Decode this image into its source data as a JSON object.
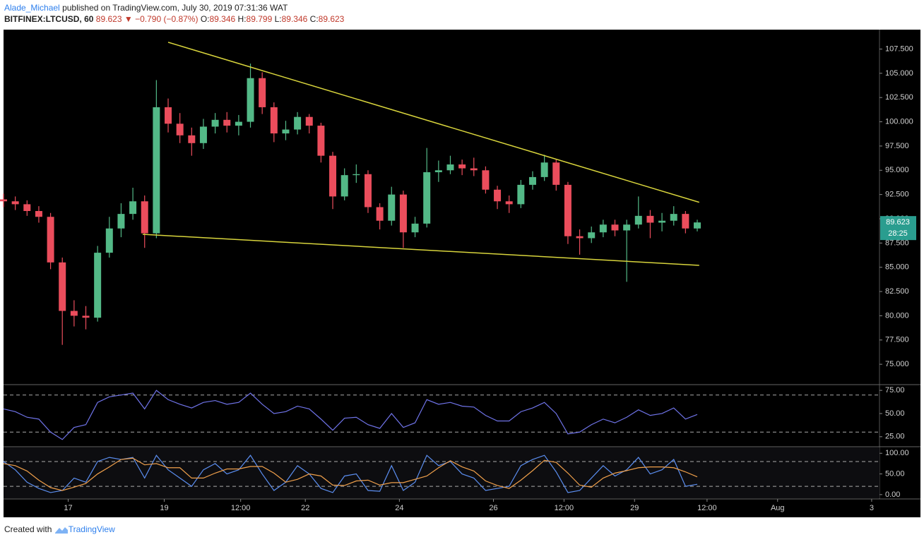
{
  "header": {
    "author": "Alade_Michael",
    "published": "published on TradingView.com, July 30, 2019 07:31:36 WAT",
    "symbol": "BITFINEX:LTCUSD, 60",
    "last": "89.623",
    "arrow": "▼",
    "change": "−0.790 (−0.87%)",
    "o_label": "O:",
    "o": "89.346",
    "h_label": "H:",
    "h": "89.799",
    "l_label": "L:",
    "l": "89.346",
    "c_label": "C:",
    "c": "89.623"
  },
  "footer": {
    "text": "Created with",
    "brand": "TradingView"
  },
  "chart_data": [
    {
      "type": "candlestick",
      "up_color": "#53b987",
      "down_color": "#eb4d5c",
      "x": [
        0,
        6,
        12,
        18,
        24,
        30,
        36,
        42,
        48,
        54,
        60,
        66,
        72,
        78,
        84,
        90,
        96,
        102,
        108,
        114,
        120,
        126,
        132,
        138,
        144,
        150,
        156,
        162,
        168,
        174,
        180,
        186,
        192,
        198,
        204,
        210,
        216,
        222,
        228,
        234,
        240,
        246,
        252,
        258,
        264,
        270,
        276,
        282,
        288,
        294,
        300,
        306,
        312,
        318,
        324,
        330,
        336,
        342,
        348,
        354
      ],
      "open": [
        92.0,
        91.8,
        91.5,
        90.8,
        90.2,
        85.5,
        80.5,
        80.0,
        79.8,
        86.5,
        89.0,
        90.5,
        91.8,
        88.5,
        101.5,
        99.8,
        98.6,
        97.8,
        99.5,
        100.2,
        99.6,
        100.0,
        104.5,
        101.5,
        98.8,
        99.2,
        100.5,
        99.6,
        96.5,
        92.3,
        94.5,
        94.6,
        91.2,
        89.8,
        92.5,
        88.6,
        89.5,
        94.8,
        95.0,
        95.6,
        95.2,
        95.0,
        93.0,
        91.8,
        91.5,
        93.5,
        94.3,
        95.8,
        93.5,
        88.2,
        88.0,
        88.6,
        89.4,
        88.8,
        89.4,
        90.3,
        89.6,
        89.8,
        90.5,
        89.0
      ],
      "high": [
        92.6,
        92.3,
        91.9,
        91.3,
        90.6,
        86.0,
        81.6,
        81.0,
        87.2,
        90.2,
        91.6,
        93.2,
        92.4,
        104.3,
        102.4,
        100.9,
        99.4,
        100.3,
        100.9,
        101.0,
        100.7,
        106.0,
        105.1,
        102.0,
        100.1,
        101.0,
        100.8,
        99.9,
        96.9,
        95.2,
        95.6,
        95.0,
        91.6,
        93.3,
        92.9,
        90.2,
        97.3,
        96.0,
        96.5,
        96.1,
        96.3,
        95.4,
        93.4,
        92.4,
        94.0,
        94.9,
        96.6,
        96.1,
        93.8,
        88.9,
        89.2,
        89.9,
        89.9,
        89.9,
        92.3,
        90.9,
        90.6,
        91.3,
        90.8,
        89.9
      ],
      "low": [
        91.2,
        90.9,
        90.3,
        89.6,
        84.8,
        77.0,
        78.9,
        78.6,
        79.4,
        86.0,
        88.1,
        89.9,
        87.0,
        88.0,
        98.9,
        97.8,
        96.5,
        97.2,
        98.8,
        98.9,
        98.6,
        99.4,
        100.8,
        97.9,
        98.1,
        98.7,
        98.8,
        95.8,
        91.0,
        91.9,
        93.7,
        90.6,
        88.9,
        89.3,
        87.0,
        88.1,
        89.1,
        93.8,
        94.6,
        94.5,
        94.4,
        92.6,
        91.0,
        90.6,
        91.1,
        93.0,
        93.9,
        92.9,
        87.4,
        86.3,
        87.5,
        88.1,
        88.2,
        83.5,
        89.0,
        88.0,
        88.7,
        89.3,
        88.5,
        88.7
      ],
      "close": [
        91.8,
        91.5,
        90.8,
        90.2,
        85.5,
        80.5,
        80.0,
        79.8,
        86.5,
        89.0,
        90.5,
        91.8,
        88.5,
        101.5,
        99.8,
        98.6,
        97.8,
        99.5,
        100.2,
        99.6,
        100.0,
        104.5,
        101.5,
        98.8,
        99.2,
        100.5,
        99.6,
        96.5,
        92.3,
        94.5,
        94.6,
        91.2,
        89.8,
        92.5,
        88.6,
        89.5,
        94.8,
        95.0,
        95.6,
        95.2,
        95.0,
        93.0,
        91.8,
        91.5,
        93.5,
        94.3,
        95.8,
        93.5,
        88.2,
        88.0,
        88.6,
        89.4,
        88.8,
        89.4,
        90.3,
        89.6,
        89.8,
        90.5,
        89.0,
        89.623
      ],
      "xlim": [
        0,
        447
      ],
      "ylim": [
        72.9,
        109.5
      ],
      "xticks": [
        {
          "value": 33,
          "label": "17"
        },
        {
          "value": 82,
          "label": "19"
        },
        {
          "value": 121,
          "label": "12:00"
        },
        {
          "value": 154,
          "label": "22"
        },
        {
          "value": 202,
          "label": "24"
        },
        {
          "value": 250,
          "label": "26"
        },
        {
          "value": 286,
          "label": "12:00"
        },
        {
          "value": 322,
          "label": "29"
        },
        {
          "value": 359,
          "label": "12:00"
        },
        {
          "value": 395,
          "label": "Aug"
        },
        {
          "value": 443,
          "label": "3"
        }
      ],
      "yticks": [
        {
          "value": 75,
          "label": "75.000"
        },
        {
          "value": 77.5,
          "label": "77.500"
        },
        {
          "value": 80,
          "label": "80.000"
        },
        {
          "value": 82.5,
          "label": "82.500"
        },
        {
          "value": 85,
          "label": "85.000"
        },
        {
          "value": 87.5,
          "label": "87.500"
        },
        {
          "value": 90,
          "label": "90.000"
        },
        {
          "value": 92.5,
          "label": "92.500"
        },
        {
          "value": 95,
          "label": "95.000"
        },
        {
          "value": 97.5,
          "label": "97.500"
        },
        {
          "value": 100,
          "label": "100.000"
        },
        {
          "value": 102.5,
          "label": "102.500"
        },
        {
          "value": 105,
          "label": "105.000"
        },
        {
          "value": 107.5,
          "label": "107.500"
        }
      ],
      "trendlines": [
        {
          "color": "#d8d43c",
          "x": [
            84,
            355
          ],
          "y": [
            108.2,
            91.7
          ]
        },
        {
          "color": "#d8d43c",
          "x": [
            71,
            355
          ],
          "y": [
            88.4,
            85.2
          ]
        }
      ],
      "last_price": 89.623,
      "last_color": "#2a9d8f",
      "countdown": "28:25"
    },
    {
      "type": "line",
      "name": "RSI",
      "color": "#6f73e8",
      "values": [
        55,
        52,
        46,
        44,
        30,
        22,
        35,
        38,
        62,
        68,
        70,
        72,
        55,
        75,
        65,
        60,
        56,
        62,
        64,
        60,
        62,
        72,
        60,
        50,
        52,
        58,
        55,
        44,
        32,
        45,
        46,
        38,
        34,
        50,
        35,
        40,
        65,
        60,
        62,
        58,
        57,
        48,
        42,
        42,
        52,
        56,
        62,
        50,
        28,
        30,
        38,
        44,
        40,
        46,
        54,
        48,
        50,
        56,
        44,
        49
      ],
      "ylim": [
        14.2,
        81.2
      ],
      "bands": [
        70,
        30
      ],
      "yticks": [
        {
          "value": 25,
          "label": "25.00"
        },
        {
          "value": 50,
          "label": "50.00"
        },
        {
          "value": 75,
          "label": "75.00"
        }
      ]
    },
    {
      "type": "line",
      "name": "Stoch",
      "series": [
        {
          "color": "#5b8ef0",
          "values": [
            80,
            60,
            30,
            15,
            5,
            10,
            40,
            30,
            80,
            90,
            85,
            90,
            40,
            95,
            60,
            40,
            20,
            60,
            75,
            50,
            60,
            95,
            50,
            10,
            30,
            70,
            50,
            15,
            5,
            45,
            50,
            10,
            8,
            70,
            10,
            30,
            95,
            70,
            80,
            50,
            40,
            10,
            15,
            20,
            70,
            85,
            95,
            55,
            5,
            10,
            40,
            70,
            45,
            60,
            90,
            50,
            60,
            85,
            20,
            25
          ]
        },
        {
          "color": "#f0a04b",
          "values": [
            75,
            70,
            57,
            35,
            17,
            10,
            18,
            27,
            50,
            67,
            85,
            88,
            72,
            75,
            65,
            65,
            40,
            40,
            52,
            62,
            62,
            68,
            68,
            52,
            30,
            37,
            50,
            45,
            23,
            22,
            33,
            35,
            23,
            29,
            29,
            37,
            45,
            65,
            82,
            67,
            57,
            33,
            22,
            15,
            35,
            58,
            83,
            78,
            52,
            23,
            18,
            40,
            52,
            58,
            65,
            67,
            67,
            65,
            55,
            43
          ]
        }
      ],
      "ylim": [
        -10.5,
        115.8
      ],
      "bands": [
        80,
        20
      ],
      "yticks": [
        {
          "value": 0,
          "label": "0.00"
        },
        {
          "value": 50,
          "label": "50.00"
        },
        {
          "value": 100,
          "label": "100.00"
        }
      ]
    }
  ]
}
